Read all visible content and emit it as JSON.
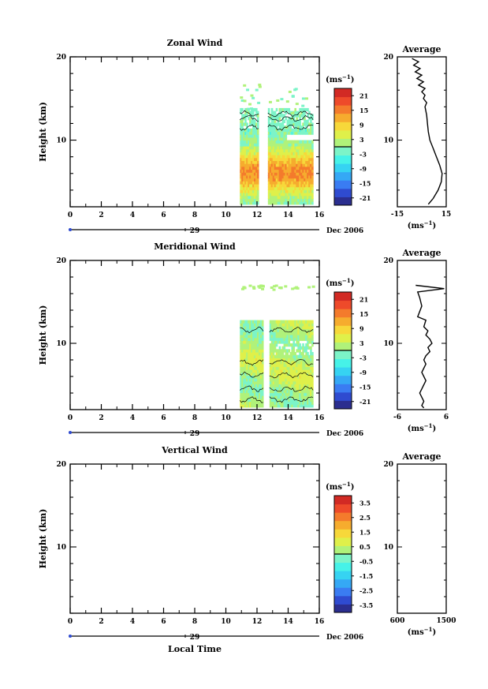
{
  "chart_data": [
    {
      "type": "heatmap",
      "title": "Zonal Wind",
      "ylabel": "Height (km)",
      "xlim": [
        0,
        16
      ],
      "ylim": [
        2,
        20
      ],
      "x_ticks": [
        "0",
        "2",
        "4",
        "6",
        "8",
        "10",
        "12",
        "14",
        "16"
      ],
      "y_ticks": [
        "20",
        "10"
      ],
      "date_label": "29",
      "date_suffix": "Dec 2006",
      "colorbar": {
        "unit": "(ms",
        "unit_exp": "−1",
        "unit_close": ")",
        "ticks": [
          "21",
          "15",
          "9",
          "3",
          "-3",
          "-9",
          "-15",
          "-21"
        ],
        "range": [
          -24,
          24
        ]
      },
      "data_blocks": [
        [
          10.9,
          12.1
        ],
        [
          12.7,
          15.6
        ]
      ],
      "profile": {
        "title": "Average",
        "xlim": [
          -15,
          15
        ],
        "x_ticks": [
          "-15",
          "15"
        ],
        "unit": "(ms",
        "unit_exp": "−1",
        "unit_close": ")",
        "points": [
          [
            -6,
            19.8
          ],
          [
            -2,
            19.4
          ],
          [
            -5,
            19.0
          ],
          [
            -1,
            18.6
          ],
          [
            -4,
            18.2
          ],
          [
            0,
            17.8
          ],
          [
            -3,
            17.4
          ],
          [
            1,
            17.0
          ],
          [
            -2,
            16.6
          ],
          [
            2,
            16.2
          ],
          [
            0,
            15.8
          ],
          [
            2,
            15.4
          ],
          [
            1,
            15.0
          ],
          [
            3,
            14.5
          ],
          [
            2,
            14.0
          ],
          [
            3,
            13.0
          ],
          [
            3.5,
            12.0
          ],
          [
            4,
            11.0
          ],
          [
            5,
            10.0
          ],
          [
            7,
            9.0
          ],
          [
            9,
            8.0
          ],
          [
            11,
            7.0
          ],
          [
            12.5,
            6.0
          ],
          [
            12,
            5.0
          ],
          [
            10,
            4.0
          ],
          [
            7,
            3.0
          ],
          [
            4,
            2.3
          ]
        ]
      }
    },
    {
      "type": "heatmap",
      "title": "Meridional Wind",
      "ylabel": "Height (km)",
      "xlim": [
        0,
        16
      ],
      "ylim": [
        2,
        20
      ],
      "x_ticks": [
        "0",
        "2",
        "4",
        "6",
        "8",
        "10",
        "12",
        "14",
        "16"
      ],
      "y_ticks": [
        "20",
        "10"
      ],
      "date_label": "29",
      "date_suffix": "Dec 2006",
      "colorbar": {
        "unit": "(ms",
        "unit_exp": "−1",
        "unit_close": ")",
        "ticks": [
          "21",
          "15",
          "9",
          "3",
          "-3",
          "-9",
          "-15",
          "-21"
        ],
        "range": [
          -24,
          24
        ]
      },
      "data_blocks": [
        [
          10.9,
          12.4
        ],
        [
          12.8,
          15.6
        ]
      ],
      "profile": {
        "title": "Average",
        "xlim": [
          -6,
          6
        ],
        "x_ticks": [
          "-6",
          "6"
        ],
        "unit": "(ms",
        "unit_exp": "−1",
        "unit_close": ")",
        "points": [
          [
            -1.5,
            17.0
          ],
          [
            5.5,
            16.6
          ],
          [
            -1,
            16.2
          ],
          [
            -0.5,
            15.5
          ],
          [
            0,
            14.5
          ],
          [
            -1,
            13.2
          ],
          [
            1,
            12.8
          ],
          [
            0.5,
            12.0
          ],
          [
            1.5,
            11.5
          ],
          [
            1,
            11.0
          ],
          [
            2,
            10.5
          ],
          [
            2.5,
            10.0
          ],
          [
            1.5,
            9.5
          ],
          [
            2,
            9.0
          ],
          [
            1,
            8.5
          ],
          [
            0.5,
            8.0
          ],
          [
            1,
            7.5
          ],
          [
            0.5,
            7.0
          ],
          [
            0,
            6.5
          ],
          [
            0.5,
            6.0
          ],
          [
            1,
            5.5
          ],
          [
            0.5,
            5.0
          ],
          [
            0,
            4.5
          ],
          [
            -0.5,
            4.0
          ],
          [
            0,
            3.5
          ],
          [
            0.5,
            3.0
          ],
          [
            0,
            2.5
          ],
          [
            0.5,
            2.2
          ]
        ]
      }
    },
    {
      "type": "heatmap",
      "title": "Vertical Wind",
      "ylabel": "Height (km)",
      "xlabel": "Local Time",
      "xlim": [
        0,
        16
      ],
      "ylim": [
        2,
        20
      ],
      "x_ticks": [
        "0",
        "2",
        "4",
        "6",
        "8",
        "10",
        "12",
        "14",
        "16"
      ],
      "y_ticks": [
        "20",
        "10"
      ],
      "date_label": "29",
      "date_suffix": "Dec 2006",
      "colorbar": {
        "unit": "(ms",
        "unit_exp": "−1",
        "unit_close": ")",
        "ticks": [
          "3.5",
          "2.5",
          "1.5",
          "0.5",
          "-0.5",
          "-1.5",
          "-2.5",
          "-3.5"
        ],
        "range": [
          -4,
          4
        ]
      },
      "data_blocks": [],
      "profile": {
        "title": "Average",
        "xlim": [
          600,
          1500
        ],
        "x_ticks": [
          "600",
          "1500"
        ],
        "unit": "(ms",
        "unit_exp": "−1",
        "unit_close": ")",
        "points": []
      }
    }
  ]
}
